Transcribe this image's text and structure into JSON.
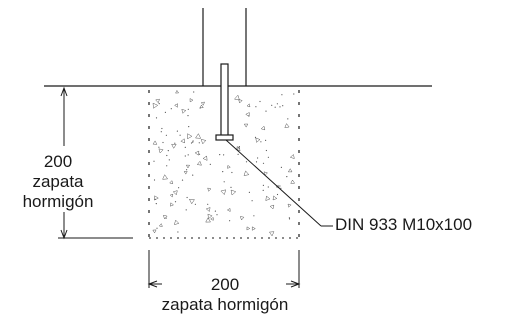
{
  "labels": {
    "vertical_dim_value": "200",
    "vertical_dim_line1": "zapata",
    "vertical_dim_line2": "hormigón",
    "horizontal_dim_value": "200",
    "horizontal_dim_text": "zapata hormigón",
    "bolt_callout": "DIN 933 M10x100"
  },
  "colors": {
    "line": "#1a1a1a",
    "concrete_speckle": "#555555",
    "background": "#ffffff"
  }
}
